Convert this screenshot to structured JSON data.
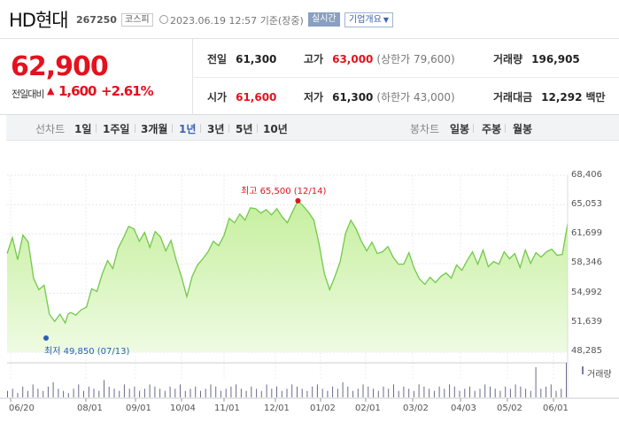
{
  "header": {
    "stock_name": "HD현대",
    "stock_code": "267250",
    "market": "코스피",
    "datetime": "2023.06.19 12:57",
    "basis": "기준(장중)",
    "realtime_badge": "실시간",
    "company_info_button": "기업개요"
  },
  "summary": {
    "current_price": "62,900",
    "compare_label": "전일대비",
    "change_arrow": "▲",
    "change_amount": "1,600",
    "change_rate": "+2.61%",
    "prev_close_label": "전일",
    "prev_close": "61,300",
    "high_label": "고가",
    "high": "63,000",
    "upper_limit": "(상한가 79,600)",
    "volume_label": "거래량",
    "volume": "196,905",
    "open_label": "시가",
    "open": "61,600",
    "low_label": "저가",
    "low": "61,300",
    "lower_limit": "(하한가 43,000)",
    "trade_value_label": "거래대금",
    "trade_value": "12,292",
    "trade_value_unit": "백만"
  },
  "tabs": {
    "line_label": "선차트",
    "line_items": [
      "1일",
      "1주일",
      "3개월",
      "1년",
      "3년",
      "5년",
      "10년"
    ],
    "active": "1년",
    "candle_label": "봉차트",
    "candle_items": [
      "일봉",
      "주봉",
      "월봉"
    ]
  },
  "colors": {
    "up": "#e4111e",
    "down": "#2a5fb7",
    "line": "#72c94a",
    "fill_top": "#c6ef9e",
    "fill_bottom": "#eefbe2",
    "active_tab": "#3b62b0",
    "volume_bar": "#6a6a8e"
  },
  "chart_data": {
    "type": "area",
    "y_ticks": [
      "68,406",
      "65,053",
      "61,699",
      "58,346",
      "54,992",
      "51,639",
      "48,285"
    ],
    "ylim": [
      48285,
      68406
    ],
    "x_ticks": [
      "06/20",
      "08/01",
      "09/01",
      "10/04",
      "11/01",
      "12/01",
      "01/02",
      "02/01",
      "03/02",
      "04/03",
      "05/02",
      "06/01"
    ],
    "high_annotation": "최고 65,500 (12/14)",
    "low_annotation": "최저 49,850 (07/13)",
    "volume_label": "거래량",
    "grid": true,
    "price_series": [
      {
        "t": 0,
        "y": 59500
      },
      {
        "t": 2,
        "y": 61300
      },
      {
        "t": 4,
        "y": 58800
      },
      {
        "t": 6,
        "y": 61600
      },
      {
        "t": 8,
        "y": 60800
      },
      {
        "t": 10,
        "y": 56700
      },
      {
        "t": 12,
        "y": 55400
      },
      {
        "t": 14,
        "y": 55900
      },
      {
        "t": 16,
        "y": 52600
      },
      {
        "t": 18,
        "y": 51800
      },
      {
        "t": 20,
        "y": 52600
      },
      {
        "t": 22,
        "y": 51600
      },
      {
        "t": 23,
        "y": 52600
      },
      {
        "t": 24,
        "y": 52800
      },
      {
        "t": 26,
        "y": 52500
      },
      {
        "t": 28,
        "y": 53100
      },
      {
        "t": 30,
        "y": 53400
      },
      {
        "t": 32,
        "y": 55500
      },
      {
        "t": 34,
        "y": 55200
      },
      {
        "t": 36,
        "y": 57200
      },
      {
        "t": 38,
        "y": 58700
      },
      {
        "t": 40,
        "y": 57800
      },
      {
        "t": 42,
        "y": 60100
      },
      {
        "t": 44,
        "y": 61300
      },
      {
        "t": 46,
        "y": 62600
      },
      {
        "t": 48,
        "y": 62300
      },
      {
        "t": 50,
        "y": 60900
      },
      {
        "t": 52,
        "y": 61900
      },
      {
        "t": 54,
        "y": 60200
      },
      {
        "t": 56,
        "y": 62000
      },
      {
        "t": 58,
        "y": 61400
      },
      {
        "t": 60,
        "y": 59800
      },
      {
        "t": 62,
        "y": 61000
      },
      {
        "t": 64,
        "y": 58700
      },
      {
        "t": 66,
        "y": 56800
      },
      {
        "t": 68,
        "y": 54600
      },
      {
        "t": 70,
        "y": 56900
      },
      {
        "t": 72,
        "y": 58200
      },
      {
        "t": 74,
        "y": 58900
      },
      {
        "t": 76,
        "y": 59700
      },
      {
        "t": 78,
        "y": 60900
      },
      {
        "t": 80,
        "y": 60400
      },
      {
        "t": 82,
        "y": 61500
      },
      {
        "t": 84,
        "y": 63500
      },
      {
        "t": 86,
        "y": 63000
      },
      {
        "t": 88,
        "y": 64000
      },
      {
        "t": 90,
        "y": 63300
      },
      {
        "t": 92,
        "y": 64700
      },
      {
        "t": 94,
        "y": 64600
      },
      {
        "t": 96,
        "y": 64100
      },
      {
        "t": 98,
        "y": 64500
      },
      {
        "t": 100,
        "y": 63900
      },
      {
        "t": 102,
        "y": 64600
      },
      {
        "t": 104,
        "y": 63700
      },
      {
        "t": 106,
        "y": 63000
      },
      {
        "t": 108,
        "y": 64300
      },
      {
        "t": 110,
        "y": 65500
      },
      {
        "t": 112,
        "y": 64900
      },
      {
        "t": 114,
        "y": 64200
      },
      {
        "t": 116,
        "y": 63300
      },
      {
        "t": 118,
        "y": 60600
      },
      {
        "t": 120,
        "y": 57200
      },
      {
        "t": 122,
        "y": 55400
      },
      {
        "t": 124,
        "y": 56900
      },
      {
        "t": 126,
        "y": 58600
      },
      {
        "t": 128,
        "y": 61800
      },
      {
        "t": 130,
        "y": 63300
      },
      {
        "t": 132,
        "y": 62300
      },
      {
        "t": 134,
        "y": 60900
      },
      {
        "t": 136,
        "y": 59800
      },
      {
        "t": 138,
        "y": 60800
      },
      {
        "t": 140,
        "y": 59500
      },
      {
        "t": 142,
        "y": 59700
      },
      {
        "t": 144,
        "y": 60300
      },
      {
        "t": 146,
        "y": 59100
      },
      {
        "t": 148,
        "y": 58300
      },
      {
        "t": 150,
        "y": 58300
      },
      {
        "t": 152,
        "y": 59600
      },
      {
        "t": 154,
        "y": 57800
      },
      {
        "t": 156,
        "y": 56600
      },
      {
        "t": 158,
        "y": 56000
      },
      {
        "t": 160,
        "y": 56800
      },
      {
        "t": 162,
        "y": 56200
      },
      {
        "t": 164,
        "y": 56900
      },
      {
        "t": 166,
        "y": 57300
      },
      {
        "t": 168,
        "y": 56700
      },
      {
        "t": 170,
        "y": 58200
      },
      {
        "t": 172,
        "y": 57600
      },
      {
        "t": 174,
        "y": 58700
      },
      {
        "t": 176,
        "y": 59700
      },
      {
        "t": 178,
        "y": 58300
      },
      {
        "t": 180,
        "y": 59900
      },
      {
        "t": 182,
        "y": 58000
      },
      {
        "t": 184,
        "y": 58600
      },
      {
        "t": 186,
        "y": 58300
      },
      {
        "t": 188,
        "y": 59700
      },
      {
        "t": 190,
        "y": 58900
      },
      {
        "t": 192,
        "y": 59500
      },
      {
        "t": 194,
        "y": 57900
      },
      {
        "t": 196,
        "y": 59900
      },
      {
        "t": 198,
        "y": 58400
      },
      {
        "t": 200,
        "y": 59600
      },
      {
        "t": 202,
        "y": 59100
      },
      {
        "t": 204,
        "y": 59700
      },
      {
        "t": 206,
        "y": 60000
      },
      {
        "t": 208,
        "y": 59300
      },
      {
        "t": 210,
        "y": 59400
      },
      {
        "t": 212,
        "y": 62900
      }
    ],
    "volume_series": [
      3,
      4,
      2,
      5,
      3,
      6,
      4,
      3,
      5,
      7,
      4,
      3,
      2,
      4,
      6,
      3,
      5,
      4,
      3,
      8,
      5,
      4,
      3,
      6,
      4,
      5,
      3,
      4,
      6,
      5,
      4,
      3,
      5,
      4,
      6,
      3,
      4,
      5,
      3,
      4,
      6,
      5,
      3,
      4,
      5,
      6,
      4,
      3,
      5,
      4,
      3,
      6,
      4,
      5,
      3,
      4,
      6,
      5,
      4,
      3,
      5,
      6,
      4,
      3,
      5,
      4,
      7,
      5,
      3,
      4,
      6,
      5,
      4,
      3,
      5,
      4,
      6,
      3,
      5,
      4,
      3,
      6,
      5,
      4,
      3,
      5,
      4,
      6,
      5,
      3,
      4,
      5,
      3,
      4,
      6,
      5,
      4,
      3,
      5,
      4,
      6,
      5,
      4,
      3,
      14,
      4,
      5,
      6,
      3,
      4,
      16
    ]
  }
}
